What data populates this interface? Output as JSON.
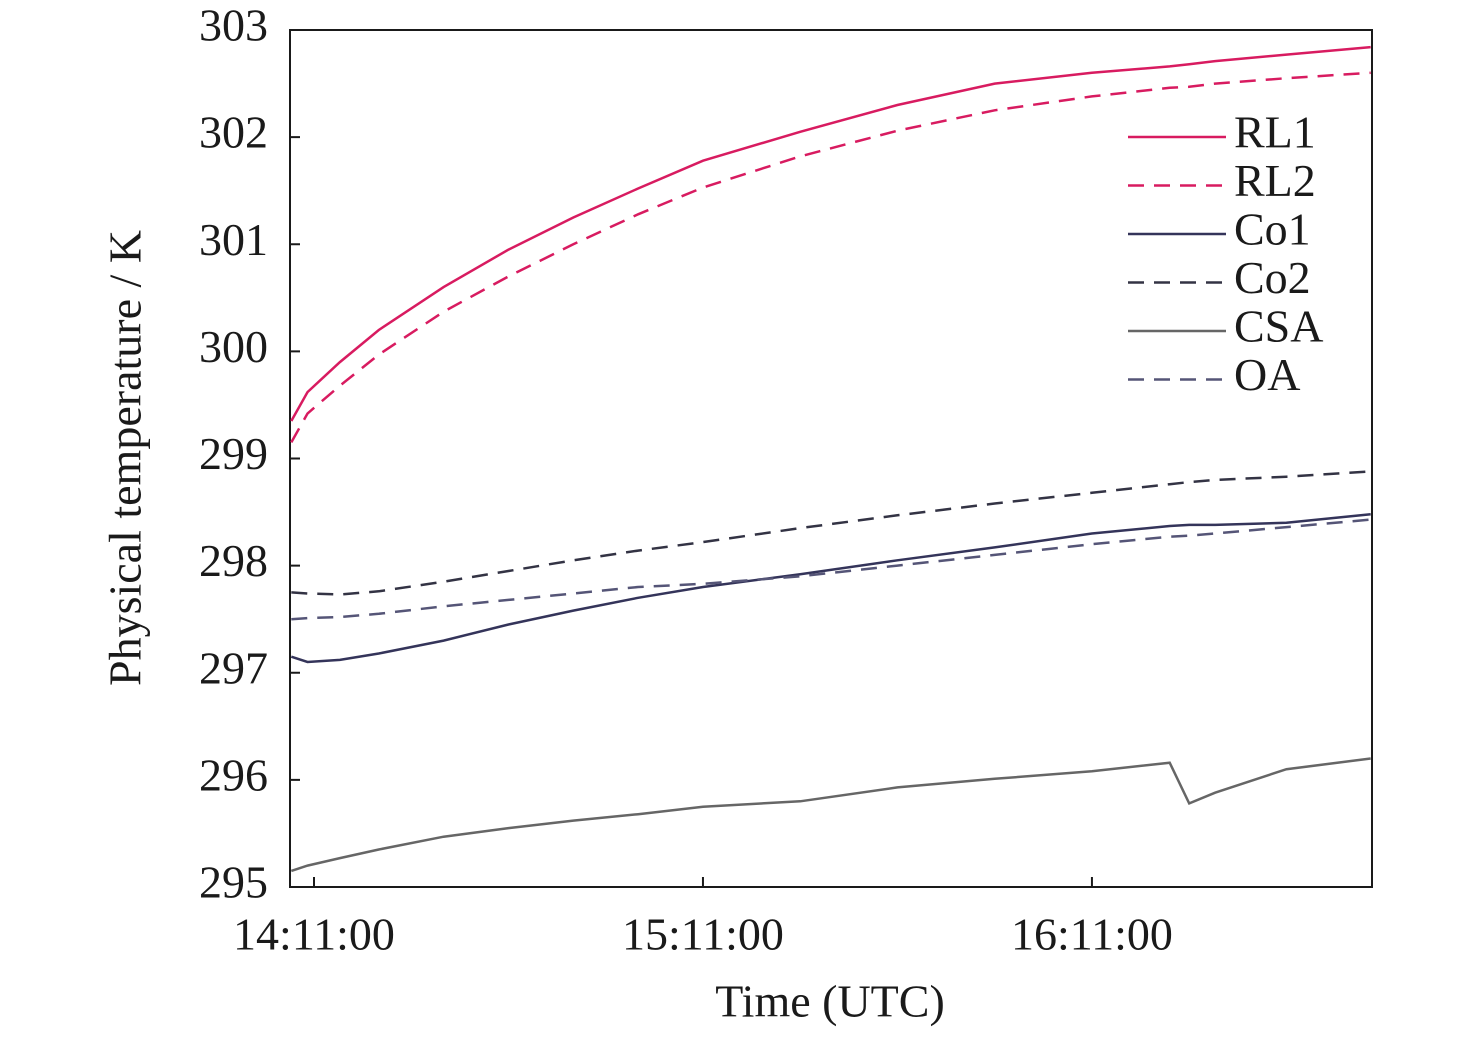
{
  "chart_data": {
    "type": "line",
    "x_label": "Time (UTC)",
    "y_label": "Physical temperature / K",
    "x": [
      847.5,
      850,
      855,
      861,
      871,
      881,
      891,
      901,
      911,
      926,
      941,
      956,
      971,
      983,
      986,
      990,
      1001,
      1014
    ],
    "xlim": [
      847.3,
      1014.2
    ],
    "xticks": [
      {
        "value": 851,
        "label": "14:11:00"
      },
      {
        "value": 911,
        "label": "15:11:00"
      },
      {
        "value": 971,
        "label": "16:11:00"
      }
    ],
    "ylim": [
      295,
      303
    ],
    "yticks": [
      295,
      296,
      297,
      298,
      299,
      300,
      301,
      302,
      303
    ],
    "legend": "upper right",
    "series": [
      {
        "name": "RL1",
        "color": "#d81b60",
        "style": "solid",
        "values": [
          299.35,
          299.62,
          299.9,
          300.2,
          300.6,
          300.95,
          301.25,
          301.52,
          301.78,
          302.05,
          302.3,
          302.5,
          302.6,
          302.66,
          302.68,
          302.71,
          302.77,
          302.84
        ]
      },
      {
        "name": "RL2",
        "color": "#d81b60",
        "style": "dashed",
        "values": [
          299.15,
          299.42,
          299.68,
          299.97,
          300.37,
          300.7,
          301.0,
          301.28,
          301.53,
          301.82,
          302.06,
          302.25,
          302.38,
          302.46,
          302.47,
          302.5,
          302.55,
          302.6
        ]
      },
      {
        "name": "Co1",
        "color": "#34345a",
        "style": "solid",
        "values": [
          297.15,
          297.1,
          297.12,
          297.18,
          297.3,
          297.45,
          297.58,
          297.7,
          297.8,
          297.92,
          298.05,
          298.17,
          298.3,
          298.37,
          298.38,
          298.38,
          298.4,
          298.48
        ]
      },
      {
        "name": "Co2",
        "color": "#333344",
        "style": "dashed",
        "values": [
          297.75,
          297.74,
          297.73,
          297.76,
          297.85,
          297.95,
          298.05,
          298.14,
          298.22,
          298.35,
          298.47,
          298.58,
          298.68,
          298.76,
          298.78,
          298.8,
          298.83,
          298.88
        ]
      },
      {
        "name": "CSA",
        "color": "#666666",
        "style": "solid",
        "values": [
          295.15,
          295.2,
          295.27,
          295.35,
          295.47,
          295.55,
          295.62,
          295.68,
          295.75,
          295.8,
          295.93,
          296.01,
          296.08,
          296.16,
          295.78,
          295.88,
          296.1,
          296.2
        ]
      },
      {
        "name": "OA",
        "color": "#555577",
        "style": "dashed",
        "values": [
          297.5,
          297.51,
          297.52,
          297.55,
          297.62,
          297.68,
          297.74,
          297.8,
          297.83,
          297.9,
          298.0,
          298.1,
          298.2,
          298.27,
          298.28,
          298.3,
          298.36,
          298.43
        ]
      }
    ]
  }
}
